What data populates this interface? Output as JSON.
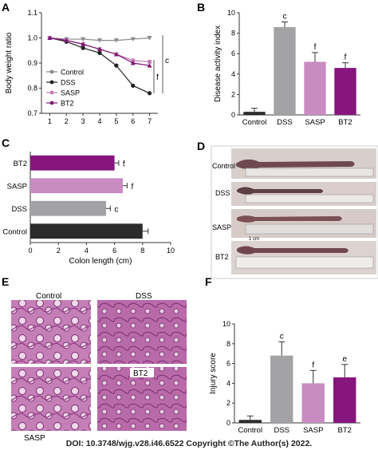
{
  "panel_letters": [
    "A",
    "B",
    "C",
    "D",
    "E",
    "F"
  ],
  "colors": {
    "control_line": "#8a8a8a",
    "dss_line": "#222222",
    "sasp_line": "#c27bb8",
    "bt2_line": "#7d1a74",
    "control_bar": "#2b2b2b",
    "dss_bar": "#a3a3a6",
    "sasp_bar": "#c98cc2",
    "bt2_bar": "#86157e",
    "tissue": "#b25aa4"
  },
  "chart_data": [
    {
      "panel": "A",
      "type": "line",
      "ylabel": "Body weight ratio",
      "x": [
        1,
        2,
        3,
        4,
        5,
        6,
        7
      ],
      "ylim": [
        0.7,
        1.1
      ],
      "yticks": [
        "0.7",
        "0.8",
        "0.9",
        "1.0",
        "1.1"
      ],
      "series": [
        {
          "name": "Control",
          "values": [
            1.0,
            0.995,
            0.995,
            0.99,
            0.99,
            0.995,
            1.0
          ]
        },
        {
          "name": "DSS",
          "values": [
            1.0,
            0.985,
            0.96,
            0.94,
            0.89,
            0.81,
            0.78
          ]
        },
        {
          "name": "SASP",
          "values": [
            1.0,
            0.99,
            0.975,
            0.955,
            0.935,
            0.91,
            0.905
          ]
        },
        {
          "name": "BT2",
          "values": [
            1.0,
            0.99,
            0.975,
            0.955,
            0.935,
            0.9,
            0.89
          ]
        }
      ],
      "annotations": [
        "c",
        "f"
      ]
    },
    {
      "panel": "B",
      "type": "bar",
      "ylabel": "Disease activity index",
      "categories": [
        "Control",
        "DSS",
        "SASP",
        "BT2"
      ],
      "values": [
        0.3,
        8.6,
        5.2,
        4.6
      ],
      "errors": [
        0.35,
        0.5,
        0.9,
        0.5
      ],
      "labels": [
        "",
        "c",
        "f",
        "f"
      ],
      "ylim": [
        0,
        10
      ],
      "yticks": [
        "0",
        "2",
        "4",
        "6",
        "8",
        "10"
      ]
    },
    {
      "panel": "C",
      "type": "bar",
      "orientation": "horizontal",
      "xlabel": "Colon length (cm)",
      "categories": [
        "BT2",
        "SASP",
        "DSS",
        "Control"
      ],
      "values": [
        6.0,
        6.6,
        5.4,
        8.0
      ],
      "errors": [
        0.3,
        0.3,
        0.3,
        0.4
      ],
      "labels": [
        "f",
        "f",
        "c",
        ""
      ],
      "xlim": [
        0,
        10
      ],
      "xticks": [
        "0",
        "2",
        "4",
        "6",
        "8",
        "10"
      ]
    },
    {
      "panel": "F",
      "type": "bar",
      "ylabel": "Injury score",
      "categories": [
        "Control",
        "DSS",
        "SASP",
        "BT2"
      ],
      "values": [
        0.3,
        6.8,
        4.0,
        4.6
      ],
      "errors": [
        0.4,
        1.4,
        1.3,
        1.3
      ],
      "labels": [
        "",
        "c",
        "f",
        "e"
      ],
      "ylim": [
        0,
        10
      ],
      "yticks": [
        "0",
        "2",
        "4",
        "6",
        "8",
        "10"
      ]
    }
  ],
  "panel_d": {
    "labels": [
      "Control",
      "DSS",
      "SASP",
      "BT2"
    ],
    "ruler_text": "1 cm"
  },
  "panel_e": {
    "labels": [
      "Control",
      "DSS",
      "SASP",
      "BT2"
    ]
  },
  "footer": "DOI: 10.3748/wjg.v28.i46.6522 Copyright ©The Author(s) 2022."
}
